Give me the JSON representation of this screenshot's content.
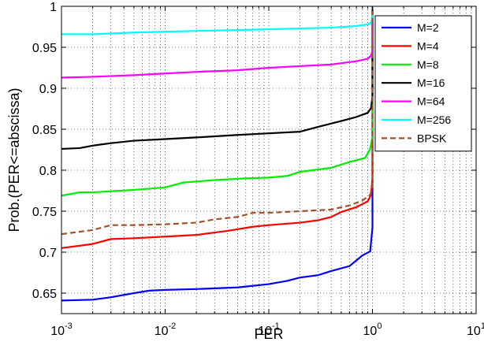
{
  "chart_data": {
    "type": "line",
    "title": "",
    "xlabel": "PER",
    "ylabel": "Prob.(PER<=abscissa)",
    "xscale": "log",
    "xlim": [
      0.001,
      10
    ],
    "ylim": [
      0.625,
      1.0
    ],
    "grid": true,
    "legend_position": "top-right",
    "x_ticks": [
      {
        "value": 0.001,
        "mantissa": "10",
        "exponent": "-3"
      },
      {
        "value": 0.01,
        "mantissa": "10",
        "exponent": "-2"
      },
      {
        "value": 0.1,
        "mantissa": "10",
        "exponent": "-1"
      },
      {
        "value": 1,
        "mantissa": "10",
        "exponent": "0"
      },
      {
        "value": 10,
        "mantissa": "10",
        "exponent": "1"
      }
    ],
    "y_ticks": [
      {
        "value": 0.65,
        "label": "0.65"
      },
      {
        "value": 0.7,
        "label": "0.7"
      },
      {
        "value": 0.75,
        "label": "0.75"
      },
      {
        "value": 0.8,
        "label": "0.8"
      },
      {
        "value": 0.85,
        "label": "0.85"
      },
      {
        "value": 0.9,
        "label": "0.9"
      },
      {
        "value": 0.95,
        "label": "0.95"
      },
      {
        "value": 1.0,
        "label": "1"
      }
    ],
    "series": [
      {
        "name": "M=2",
        "color": "#0000ff",
        "dash": "solid",
        "points": [
          [
            0.001,
            0.641
          ],
          [
            0.002,
            0.642
          ],
          [
            0.003,
            0.645
          ],
          [
            0.005,
            0.65
          ],
          [
            0.007,
            0.653
          ],
          [
            0.01,
            0.654
          ],
          [
            0.02,
            0.655
          ],
          [
            0.05,
            0.657
          ],
          [
            0.1,
            0.661
          ],
          [
            0.15,
            0.665
          ],
          [
            0.2,
            0.669
          ],
          [
            0.3,
            0.672
          ],
          [
            0.4,
            0.677
          ],
          [
            0.6,
            0.683
          ],
          [
            0.8,
            0.696
          ],
          [
            0.95,
            0.701
          ],
          [
            1.0,
            0.73
          ],
          [
            1.0,
            1.0
          ]
        ]
      },
      {
        "name": "M=4",
        "color": "#ff0000",
        "dash": "solid",
        "points": [
          [
            0.001,
            0.705
          ],
          [
            0.002,
            0.71
          ],
          [
            0.003,
            0.716
          ],
          [
            0.005,
            0.717
          ],
          [
            0.01,
            0.719
          ],
          [
            0.02,
            0.721
          ],
          [
            0.04,
            0.726
          ],
          [
            0.07,
            0.731
          ],
          [
            0.1,
            0.733
          ],
          [
            0.2,
            0.736
          ],
          [
            0.3,
            0.739
          ],
          [
            0.4,
            0.743
          ],
          [
            0.5,
            0.749
          ],
          [
            0.7,
            0.755
          ],
          [
            0.9,
            0.762
          ],
          [
            0.97,
            0.77
          ],
          [
            1.0,
            0.79
          ],
          [
            1.0,
            1.0
          ]
        ]
      },
      {
        "name": "M=8",
        "color": "#00ee00",
        "dash": "solid",
        "points": [
          [
            0.001,
            0.769
          ],
          [
            0.0015,
            0.773
          ],
          [
            0.002,
            0.773
          ],
          [
            0.005,
            0.776
          ],
          [
            0.01,
            0.779
          ],
          [
            0.015,
            0.785
          ],
          [
            0.03,
            0.788
          ],
          [
            0.06,
            0.79
          ],
          [
            0.1,
            0.791
          ],
          [
            0.15,
            0.793
          ],
          [
            0.2,
            0.798
          ],
          [
            0.4,
            0.803
          ],
          [
            0.6,
            0.81
          ],
          [
            0.85,
            0.815
          ],
          [
            0.95,
            0.826
          ],
          [
            1.0,
            0.84
          ],
          [
            1.0,
            1.0
          ]
        ]
      },
      {
        "name": "M=16",
        "color": "#000000",
        "dash": "solid",
        "points": [
          [
            0.001,
            0.826
          ],
          [
            0.0015,
            0.827
          ],
          [
            0.002,
            0.83
          ],
          [
            0.003,
            0.833
          ],
          [
            0.005,
            0.836
          ],
          [
            0.01,
            0.838
          ],
          [
            0.02,
            0.84
          ],
          [
            0.05,
            0.843
          ],
          [
            0.1,
            0.845
          ],
          [
            0.2,
            0.847
          ],
          [
            0.3,
            0.853
          ],
          [
            0.5,
            0.86
          ],
          [
            0.7,
            0.865
          ],
          [
            0.9,
            0.87
          ],
          [
            0.97,
            0.876
          ],
          [
            1.0,
            0.89
          ],
          [
            1.0,
            1.0
          ]
        ]
      },
      {
        "name": "M=64",
        "color": "#ff00ff",
        "dash": "solid",
        "points": [
          [
            0.001,
            0.913
          ],
          [
            0.002,
            0.914
          ],
          [
            0.005,
            0.916
          ],
          [
            0.01,
            0.918
          ],
          [
            0.02,
            0.92
          ],
          [
            0.05,
            0.922
          ],
          [
            0.1,
            0.925
          ],
          [
            0.2,
            0.927
          ],
          [
            0.4,
            0.929
          ],
          [
            0.7,
            0.933
          ],
          [
            0.9,
            0.936
          ],
          [
            0.97,
            0.94
          ],
          [
            1.0,
            0.945
          ],
          [
            1.0,
            1.0
          ]
        ]
      },
      {
        "name": "M=256",
        "color": "#00ffff",
        "dash": "solid",
        "points": [
          [
            0.001,
            0.966
          ],
          [
            0.002,
            0.966
          ],
          [
            0.005,
            0.968
          ],
          [
            0.01,
            0.969
          ],
          [
            0.02,
            0.97
          ],
          [
            0.05,
            0.971
          ],
          [
            0.1,
            0.972
          ],
          [
            0.2,
            0.973
          ],
          [
            0.4,
            0.974
          ],
          [
            0.7,
            0.976
          ],
          [
            0.9,
            0.978
          ],
          [
            0.97,
            0.98
          ],
          [
            1.0,
            0.985
          ],
          [
            1.0,
            1.0
          ]
        ]
      },
      {
        "name": "BPSK",
        "color": "#a0522d",
        "dash": "dashed",
        "points": [
          [
            0.001,
            0.722
          ],
          [
            0.002,
            0.727
          ],
          [
            0.003,
            0.733
          ],
          [
            0.005,
            0.733
          ],
          [
            0.01,
            0.734
          ],
          [
            0.02,
            0.736
          ],
          [
            0.03,
            0.74
          ],
          [
            0.05,
            0.743
          ],
          [
            0.07,
            0.748
          ],
          [
            0.1,
            0.748
          ],
          [
            0.2,
            0.75
          ],
          [
            0.4,
            0.752
          ],
          [
            0.6,
            0.757
          ],
          [
            0.8,
            0.763
          ],
          [
            0.95,
            0.77
          ],
          [
            1.0,
            0.78
          ],
          [
            1.0,
            1.0
          ]
        ]
      }
    ]
  }
}
